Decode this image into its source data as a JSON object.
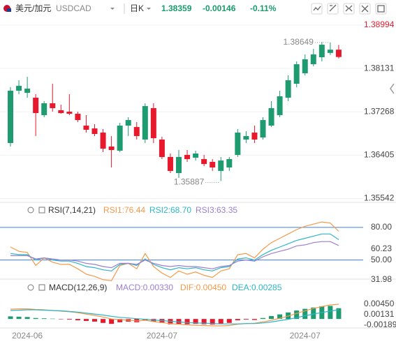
{
  "header": {
    "symbol": "美元/加元",
    "code": "USDCAD",
    "period": "日K",
    "price": "1.38359",
    "change": "-0.00146",
    "change_pct": "-0.11%"
  },
  "chart_data": [
    {
      "type": "candlestick",
      "categories": [
        null,
        null,
        "2024-06",
        null,
        null,
        null,
        null,
        null,
        null,
        null,
        null,
        null,
        null,
        null,
        null,
        null,
        null,
        null,
        "2024-07",
        null,
        null,
        null,
        null,
        null,
        null,
        null,
        null,
        null,
        null,
        null,
        null,
        null,
        null,
        null,
        null,
        "2024-07",
        null,
        null,
        null,
        null
      ],
      "open": [
        1.36645,
        1.37687,
        1.37645,
        1.37548,
        1.37201,
        1.37437,
        1.37298,
        1.3727,
        1.37228,
        1.36992,
        1.36936,
        1.36853,
        1.36575,
        1.36492,
        1.36992,
        1.36964,
        1.36714,
        1.3734,
        1.36714,
        1.36367,
        1.36047,
        1.36408,
        1.36353,
        1.36325,
        1.36269,
        1.36089,
        1.36158,
        1.36408,
        1.36714,
        1.36853,
        1.36756,
        1.36992,
        1.37201,
        1.37548,
        1.37826,
        1.38035,
        1.38215,
        1.38354,
        1.3844,
        1.38505
      ],
      "high": [
        1.37757,
        1.37896,
        1.37965,
        1.37618,
        1.37479,
        1.37826,
        1.37409,
        1.37618,
        1.3727,
        1.37201,
        1.3702,
        1.36923,
        1.36784,
        1.37048,
        1.37159,
        1.37062,
        1.37437,
        1.37437,
        1.3677,
        1.36436,
        1.36506,
        1.36506,
        1.36492,
        1.36408,
        1.36325,
        1.36367,
        1.36367,
        1.36923,
        1.36881,
        1.36992,
        1.37159,
        1.37479,
        1.37687,
        1.37993,
        1.38271,
        1.3841,
        1.38521,
        1.3866,
        1.38649,
        1.386
      ],
      "low": [
        1.36575,
        1.37618,
        1.37548,
        1.36784,
        1.37159,
        1.3727,
        1.37228,
        1.37201,
        1.37062,
        1.36853,
        1.36784,
        1.36464,
        1.36158,
        1.36464,
        1.36784,
        1.36714,
        1.36645,
        1.36645,
        1.36325,
        1.36047,
        1.3595,
        1.36269,
        1.36297,
        1.36186,
        1.36089,
        1.35887,
        1.36089,
        1.36367,
        1.36645,
        1.36645,
        1.36714,
        1.36964,
        1.37159,
        1.37479,
        1.37757,
        1.37993,
        1.38174,
        1.38271,
        1.384,
        1.3833
      ],
      "close": [
        1.37687,
        1.37784,
        1.37729,
        1.37242,
        1.37437,
        1.3734,
        1.37242,
        1.37228,
        1.37103,
        1.36909,
        1.36825,
        1.36533,
        1.36506,
        1.36992,
        1.37103,
        1.36784,
        1.37381,
        1.36742,
        1.36367,
        1.36089,
        1.36367,
        1.36325,
        1.36436,
        1.36227,
        1.36158,
        1.36297,
        1.36325,
        1.36853,
        1.36784,
        1.36714,
        1.37103,
        1.3734,
        1.37576,
        1.37896,
        1.38215,
        1.38313,
        1.3841,
        1.38604,
        1.38505,
        1.38359
      ],
      "up_color": "#1f9b70",
      "down_color": "#e8192c",
      "ylim": [
        1.35463,
        1.39147
      ],
      "yticks": [
        1.38994,
        1.38131,
        1.37268,
        1.36405,
        1.35542
      ],
      "annotations": [
        1.38649,
        1.35887
      ],
      "grid": true
    },
    {
      "type": "line",
      "title": "RSI(7,14,21)",
      "series": [
        {
          "name": "RSI1:76.44",
          "color": "#f39a4a",
          "values": [
            62,
            58,
            57,
            45,
            52,
            48,
            46,
            46,
            42,
            37,
            35,
            32,
            31,
            45,
            47,
            42,
            56,
            44,
            38,
            34,
            40,
            37,
            39,
            36,
            34,
            40,
            42,
            55,
            56,
            52,
            60,
            66,
            70,
            74,
            78,
            81,
            83,
            85,
            84,
            76.44
          ]
        },
        {
          "name": "RSI2:68.70",
          "color": "#2cb5c8",
          "values": [
            56,
            55,
            55,
            50,
            52,
            50,
            49,
            49,
            47,
            44,
            43,
            41,
            40,
            46,
            47,
            45,
            51,
            46,
            43,
            41,
            43,
            42,
            43,
            41,
            40,
            43,
            44,
            51,
            52,
            50,
            55,
            59,
            62,
            65,
            68,
            70,
            72,
            74,
            74,
            68.7
          ]
        },
        {
          "name": "RSI3:63.35",
          "color": "#9b7fd1",
          "values": [
            54,
            54,
            54,
            51,
            52,
            51,
            50,
            50,
            49,
            47,
            46,
            44,
            43,
            47,
            47,
            46,
            50,
            47,
            45,
            44,
            45,
            44,
            44,
            43,
            42,
            44,
            45,
            49,
            50,
            49,
            53,
            56,
            58,
            60,
            63,
            64,
            66,
            67,
            67,
            63.35
          ]
        }
      ],
      "ylim": [
        31.2,
        90.2
      ],
      "yticks": [
        {
          "value": 80,
          "label": "80.00"
        },
        60.23,
        {
          "value": 50,
          "label": "50.00"
        },
        31.98
      ],
      "levels": [
        80,
        50
      ],
      "level_color": "#3d7fe0"
    },
    {
      "type": "macd",
      "title": "MACD(12,26,9)",
      "histogram": {
        "name": "MACD:0.00330",
        "color": "#9b7fd1",
        "up_color": "#1f9b70",
        "down_color": "#e8192c",
        "values": [
          0.0008,
          0.0007,
          0.0006,
          0.0003,
          0.0002,
          0.0001,
          -0.0001,
          -0.0002,
          -0.0004,
          -0.0006,
          -0.0008,
          -0.0012,
          -0.0015,
          -0.001,
          -0.0008,
          -0.001,
          -0.0004,
          -0.0008,
          -0.0012,
          -0.0016,
          -0.0015,
          -0.0016,
          -0.0015,
          -0.0016,
          -0.0017,
          -0.0014,
          -0.0012,
          -0.0004,
          -0.0002,
          -0.0003,
          0.0003,
          0.0009,
          0.0014,
          0.002,
          0.0026,
          0.0031,
          0.0035,
          0.0039,
          0.004,
          0.0033
        ]
      },
      "series": [
        {
          "name": "DIF:0.00450",
          "color": "#f39a4a",
          "values": [
            0.003,
            0.0031,
            0.0031,
            0.0029,
            0.0028,
            0.0026,
            0.0024,
            0.0022,
            0.0019,
            0.0015,
            0.0011,
            0.0006,
            0.0,
            -0.0002,
            -0.0003,
            -0.0006,
            -0.0004,
            -0.0008,
            -0.0011,
            -0.0014,
            -0.0016,
            -0.0018,
            -0.0019,
            -0.002,
            -0.0021,
            -0.0021,
            -0.002,
            -0.0016,
            -0.0014,
            -0.0013,
            -0.0009,
            -0.0004,
            0.0002,
            0.0009,
            0.0017,
            0.0025,
            0.0032,
            0.0038,
            0.0043,
            0.0045
          ]
        },
        {
          "name": "DEA:0.00285",
          "color": "#2cb5c8",
          "values": [
            0.0026,
            0.0027,
            0.0028,
            0.0028,
            0.0027,
            0.0026,
            0.0025,
            0.0023,
            0.0021,
            0.0018,
            0.0015,
            0.0012,
            0.0008,
            0.0005,
            0.0003,
            0.0001,
            -0.0001,
            -0.0003,
            -0.0005,
            -0.0007,
            -0.0009,
            -0.0011,
            -0.0012,
            -0.0013,
            -0.0014,
            -0.0015,
            -0.0015,
            -0.0015,
            -0.0014,
            -0.0014,
            -0.0012,
            -0.0009,
            -0.0005,
            -0.0001,
            0.0004,
            0.001,
            0.0015,
            0.002,
            0.0024,
            0.00285
          ]
        }
      ],
      "ylim": [
        -0.00274,
        0.00792
      ],
      "yticks": [
        {
          "value": 0.0045,
          "label": "0.00450"
        },
        0.00131,
        -0.00189
      ]
    }
  ]
}
